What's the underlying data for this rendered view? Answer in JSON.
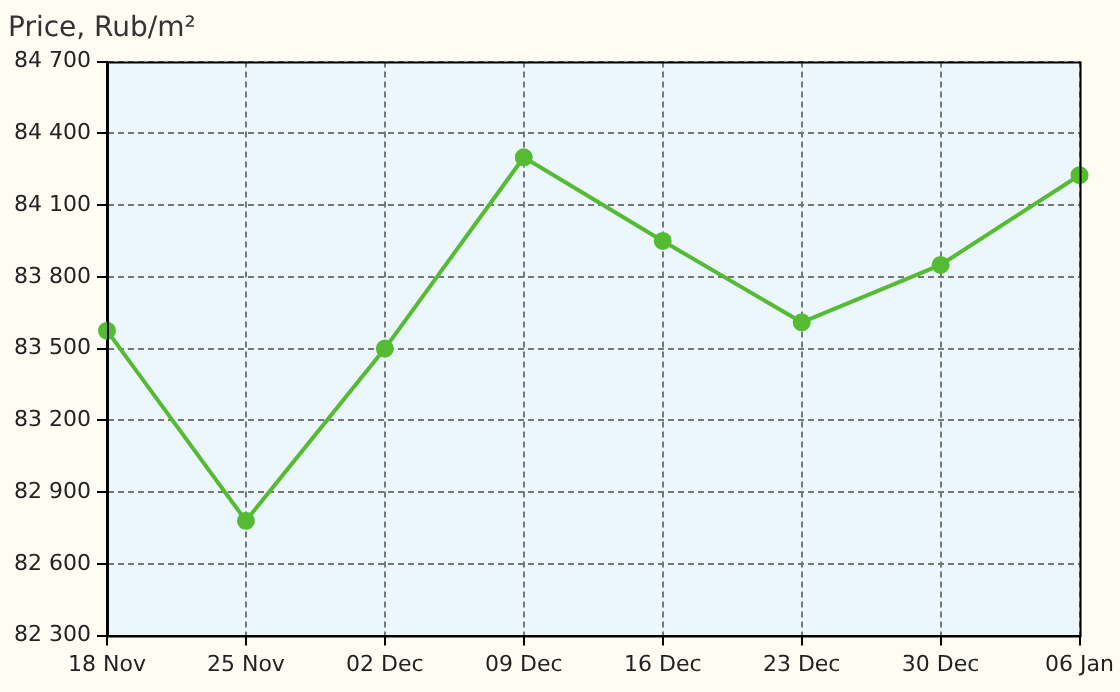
{
  "chart_data": {
    "type": "line",
    "title": "Price, Rub/m²",
    "categories": [
      "18 Nov",
      "25 Nov",
      "02 Dec",
      "09 Dec",
      "16 Dec",
      "23 Dec",
      "30 Dec",
      "06 Jan"
    ],
    "series": [
      {
        "color": "#55bb33",
        "values": [
          83575,
          82780,
          83500,
          84300,
          83950,
          83610,
          83850,
          84225
        ]
      }
    ],
    "ylim": [
      82300,
      84700
    ],
    "yticks": [
      {
        "value": 82300,
        "label": "82 300"
      },
      {
        "value": 82600,
        "label": "82 600"
      },
      {
        "value": 82900,
        "label": "82 900"
      },
      {
        "value": 83200,
        "label": "83 200"
      },
      {
        "value": 83500,
        "label": "83 500"
      },
      {
        "value": 83800,
        "label": "83 800"
      },
      {
        "value": 84100,
        "label": "84 100"
      },
      {
        "value": 84400,
        "label": "84 400"
      },
      {
        "value": 84700,
        "label": "84 700"
      }
    ],
    "grid": true,
    "legend": false,
    "marker": "circle",
    "line_style": "solid"
  }
}
